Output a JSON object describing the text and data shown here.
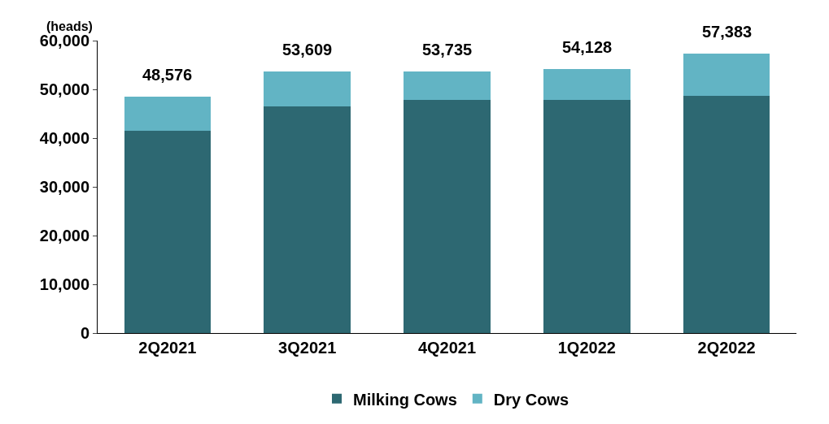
{
  "chart_data": {
    "type": "bar",
    "stacked": true,
    "ylabel": "(heads)",
    "categories": [
      "2Q2021",
      "3Q2021",
      "4Q2021",
      "1Q2022",
      "2Q2022"
    ],
    "series": [
      {
        "name": "Milking Cows",
        "color": "#2d6872",
        "values": [
          41500,
          46500,
          47900,
          47800,
          48600
        ]
      },
      {
        "name": "Dry Cows",
        "color": "#62b4c4",
        "values": [
          7076,
          7109,
          5835,
          6328,
          8783
        ]
      }
    ],
    "totals": [
      "48,576",
      "53,609",
      "53,735",
      "54,128",
      "57,383"
    ],
    "ylim": [
      0,
      60000
    ],
    "yticks": [
      {
        "value": 0,
        "label": "0"
      },
      {
        "value": 10000,
        "label": "10,000"
      },
      {
        "value": 20000,
        "label": "20,000"
      },
      {
        "value": 30000,
        "label": "30,000"
      },
      {
        "value": 40000,
        "label": "40,000"
      },
      {
        "value": 50000,
        "label": "50,000"
      },
      {
        "value": 60000,
        "label": "60,000"
      }
    ],
    "grid": false,
    "legend": "bottom"
  }
}
